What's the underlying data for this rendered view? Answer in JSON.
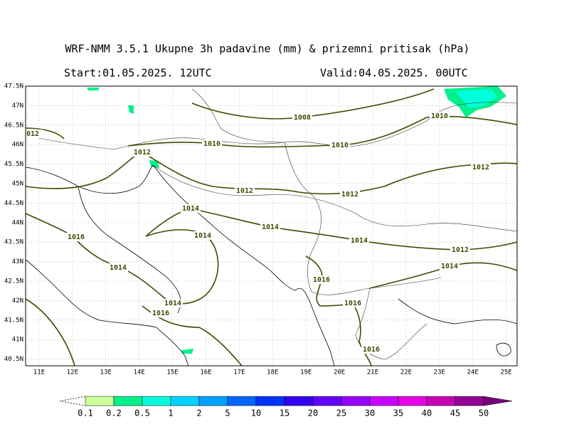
{
  "title": "WRF-NMM 3.5.1  Ukupne 3h padavine (mm) & prizemni pritisak (hPa)",
  "start": "Start:01.05.2025.  12UTC",
  "valid": "Valid:04.05.2025.  00UTC",
  "lat_labels": [
    "47.5N",
    "47N",
    "46.5N",
    "46N",
    "45.5N",
    "45N",
    "44.5N",
    "44N",
    "43.5N",
    "43N",
    "42.5N",
    "42N",
    "41.5N",
    "41N",
    "40.5N"
  ],
  "lon_labels": [
    "11E",
    "12E",
    "13E",
    "14E",
    "15E",
    "16E",
    "17E",
    "18E",
    "19E",
    "20E",
    "21E",
    "22E",
    "23E",
    "24E",
    "25E"
  ],
  "isobar_labels": [
    "1008",
    "1010",
    "012",
    "1012",
    "1010",
    "1010",
    "1012",
    "1012",
    "1012",
    "1014",
    "1014",
    "1016",
    "1014",
    "1014",
    "1012",
    "1014",
    "1014",
    "1016",
    "1014",
    "1016",
    "1016",
    "1016"
  ],
  "colorbar": {
    "labels": [
      "0.1",
      "0.2",
      "0.5",
      "1",
      "2",
      "5",
      "10",
      "15",
      "20",
      "25",
      "30",
      "35",
      "40",
      "45",
      "50"
    ],
    "colors": [
      "#ccff99",
      "#00f08c",
      "#00ffdc",
      "#00d2ff",
      "#00a0ff",
      "#0064ff",
      "#0032ff",
      "#3200f0",
      "#6400ff",
      "#9600ff",
      "#c800ff",
      "#e600e6",
      "#c800b4",
      "#960096",
      "#780078"
    ]
  }
}
